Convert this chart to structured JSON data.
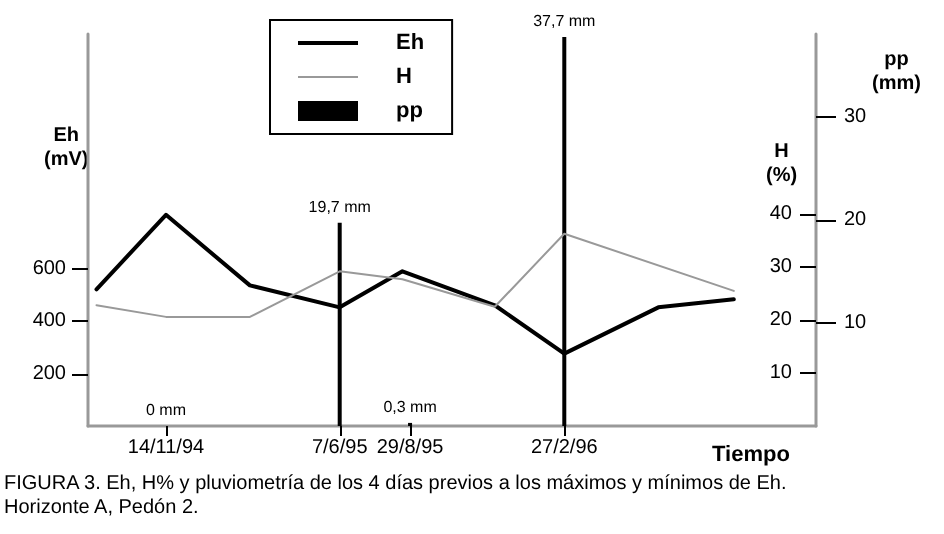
{
  "chart_data": {
    "type": "line",
    "annotations": [
      "FIGURA 3. Eh, H% y pluviometría de los 4 días previos a los máximos y mínimos de Eh. Horizonte A, Pedón 2."
    ],
    "xlabel": "Tiempo",
    "ylabel": "Eh\n(mV)",
    "y2label": "H\n(%)",
    "y3label": "pp\n(mm)",
    "xlim": [
      "1994-08-14",
      "1996-12-20"
    ],
    "xticks": [
      {
        "value": "1994-11-14",
        "label": "14/11/94"
      },
      {
        "value": "1995-06-07",
        "label": "7/6/95"
      },
      {
        "value": "1995-08-29",
        "label": "29/8/95"
      },
      {
        "value": "1996-02-27",
        "label": "27/2/96"
      }
    ],
    "ylim": [
      0,
      1500
    ],
    "yticks": [
      200,
      400,
      600
    ],
    "y2lim": [
      0,
      74
    ],
    "y2ticks": [
      10,
      20,
      30,
      40
    ],
    "y3lim": [
      0,
      38
    ],
    "y3ticks": [
      10,
      20,
      30
    ],
    "series": [
      {
        "name": "Eh",
        "color": "#000000",
        "x": [
          "1994-08-24",
          "1994-11-14",
          "1995-02-21",
          "1995-06-07",
          "1995-08-20",
          "1995-12-07",
          "1996-02-27",
          "1996-06-17",
          "1996-09-14"
        ],
        "values": [
          523,
          808,
          538,
          454,
          592,
          462,
          277,
          454,
          485
        ]
      },
      {
        "name": "H",
        "color": "#999999",
        "axis": "y2",
        "x": [
          "1994-08-24",
          "1994-11-14",
          "1995-02-21",
          "1995-06-07",
          "1995-08-20",
          "1995-12-07",
          "1996-02-27",
          "1996-09-14"
        ],
        "values": [
          22.8,
          20.6,
          20.6,
          29.2,
          27.7,
          22.5,
          36.3,
          25.5
        ]
      },
      {
        "name": "pp",
        "type": "bar",
        "color": "#000000",
        "axis": "y3",
        "x": [
          "1994-11-14",
          "1995-06-07",
          "1995-08-29",
          "1996-02-27"
        ],
        "values": [
          0,
          19.7,
          0.3,
          37.7
        ],
        "value_labels": [
          "0 mm",
          "19,7 mm",
          "0,3 mm",
          "37,7 mm"
        ]
      }
    ],
    "grid": false,
    "legend": "top",
    "marker": "none",
    "line_style": "solid"
  }
}
